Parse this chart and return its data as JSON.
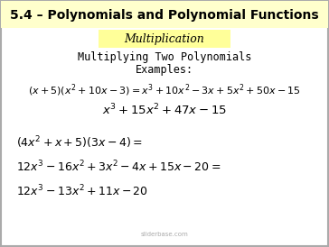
{
  "title": "5.4 – Polynomials and Polynomial Functions",
  "title_bg": "#ffffcc",
  "subtitle": "Multiplication",
  "subtitle_bg": "#ffff99",
  "body_bg": "#ffffff",
  "border_color": "#aaaaaa",
  "watermark": "sliderbase.com",
  "font_color": "#000000"
}
